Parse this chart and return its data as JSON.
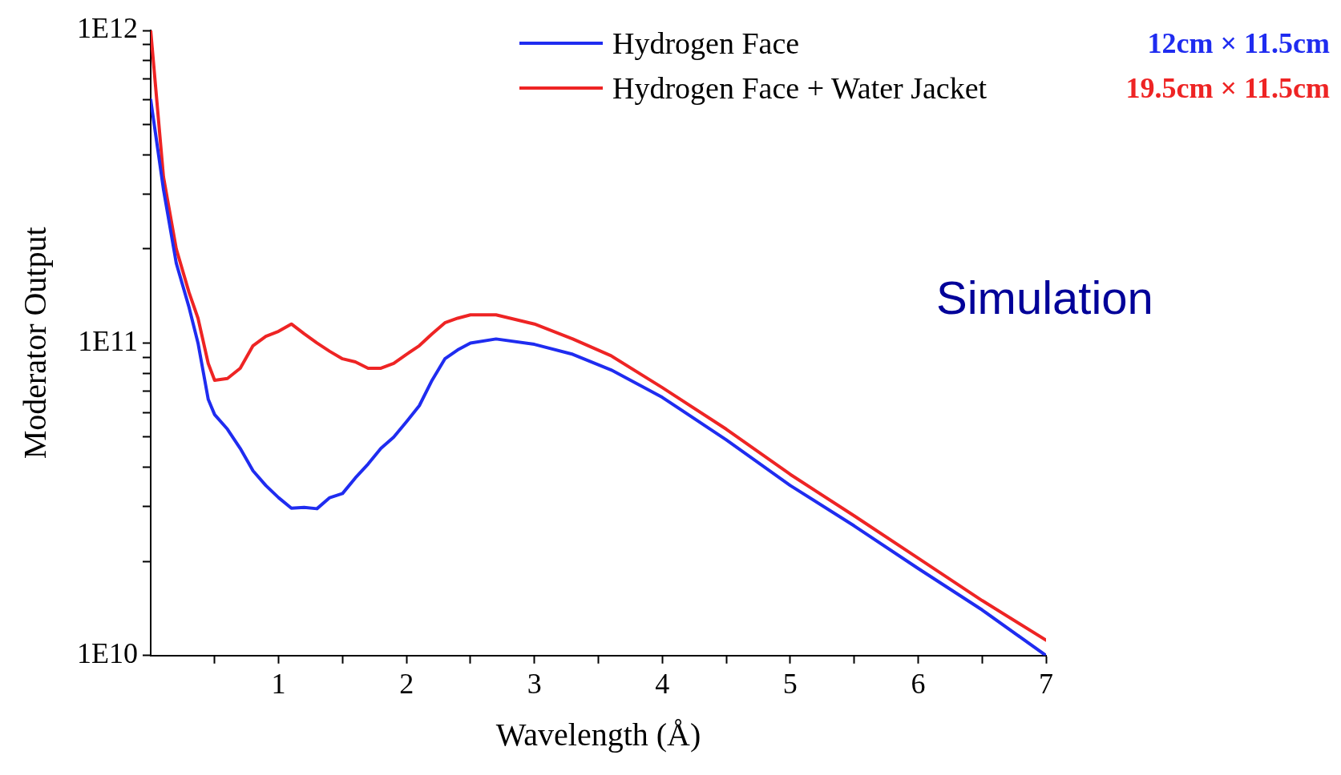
{
  "chart_data": {
    "type": "line",
    "xlabel": "Wavelength (Å)",
    "ylabel": "Moderator Output",
    "log": "y",
    "legend": "top right",
    "grid": false,
    "marker": "none",
    "line_style": "solid",
    "xlim": [
      0,
      7
    ],
    "xticks": [
      {
        "value": 0.5,
        "label": null
      },
      1,
      {
        "value": 1.5,
        "label": null
      },
      2,
      {
        "value": 2.5,
        "label": null
      },
      3,
      {
        "value": 3.5,
        "label": null
      },
      4,
      {
        "value": 4.5,
        "label": null
      },
      5,
      {
        "value": 5.5,
        "label": null
      },
      6,
      {
        "value": 6.5,
        "label": null
      },
      7
    ],
    "ylim": [
      10000000000,
      1000000000000
    ],
    "yticks": [
      {
        "value": 10000000000,
        "label": "1E10"
      },
      {
        "value": 20000000000,
        "label": null
      },
      {
        "value": 30000000000,
        "label": null
      },
      {
        "value": 40000000000,
        "label": null
      },
      {
        "value": 50000000000,
        "label": null
      },
      {
        "value": 60000000000,
        "label": null
      },
      {
        "value": 70000000000,
        "label": null
      },
      {
        "value": 80000000000,
        "label": null
      },
      {
        "value": 90000000000,
        "label": null
      },
      {
        "value": 100000000000,
        "label": "1E11"
      },
      {
        "value": 200000000000,
        "label": null
      },
      {
        "value": 300000000000,
        "label": null
      },
      {
        "value": 400000000000,
        "label": null
      },
      {
        "value": 500000000000,
        "label": null
      },
      {
        "value": 600000000000,
        "label": null
      },
      {
        "value": 700000000000,
        "label": null
      },
      {
        "value": 800000000000,
        "label": null
      },
      {
        "value": 900000000000,
        "label": null
      },
      {
        "value": 1000000000000,
        "label": "1E12"
      }
    ],
    "annotations": [
      "12cm × 11.5cm",
      "19.5cm × 11.5cm",
      "Simulation"
    ],
    "x": [
      0,
      0.1,
      0.2,
      0.3,
      0.37,
      0.45,
      0.5,
      0.6,
      0.7,
      0.8,
      0.9,
      1.0,
      1.1,
      1.2,
      1.3,
      1.4,
      1.5,
      1.6,
      1.7,
      1.8,
      1.9,
      2.0,
      2.1,
      2.2,
      2.3,
      2.4,
      2.5,
      2.7,
      3.0,
      3.3,
      3.6,
      4.0,
      4.5,
      5.0,
      5.5,
      6.0,
      6.5,
      7.0
    ],
    "series": [
      {
        "name": "Hydrogen Face",
        "color": "#1f2cf0",
        "values": [
          600000000000,
          310000000000,
          180000000000,
          130000000000,
          100000000000,
          66000000000,
          59000000000,
          53000000000,
          46000000000,
          39000000000,
          35000000000,
          32000000000,
          29600000000,
          29800000000,
          29500000000,
          32000000000,
          33000000000,
          37000000000,
          41000000000,
          46000000000,
          50000000000,
          56000000000,
          63000000000,
          76000000000,
          89000000000,
          95000000000,
          100000000000,
          103000000000,
          99000000000,
          92000000000,
          82000000000,
          67000000000,
          49000000000,
          35000000000,
          26000000000,
          19000000000,
          14000000000,
          10000000000
        ]
      },
      {
        "name": "Hydrogen Face + Water Jacket",
        "color": "#ee2424",
        "values": [
          1000000000000,
          340000000000,
          200000000000,
          145000000000,
          120000000000,
          86000000000,
          76000000000,
          77000000000,
          83000000000,
          98000000000,
          105000000000,
          109000000000,
          115000000000,
          107000000000,
          100000000000,
          94000000000,
          89000000000,
          87000000000,
          83000000000,
          83000000000,
          86000000000,
          92000000000,
          98000000000,
          107000000000,
          116000000000,
          120000000000,
          123000000000,
          123000000000,
          115000000000,
          103000000000,
          91000000000,
          72000000000,
          53000000000,
          38000000000,
          28000000000,
          20500000000,
          15000000000,
          11200000000
        ]
      }
    ]
  }
}
